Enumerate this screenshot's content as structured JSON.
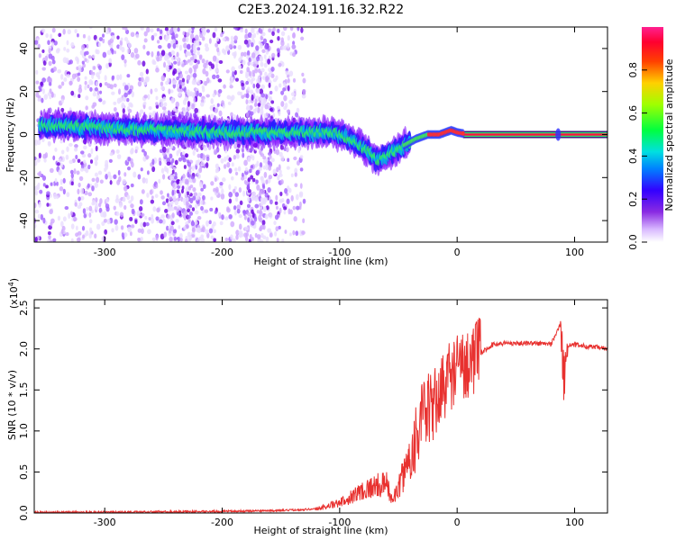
{
  "title": "C2E3.2024.191.16.32.R22",
  "chart_data": [
    {
      "type": "heatmap",
      "xlabel": "Height of straight line (km)",
      "ylabel": "Frequency (Hz)",
      "xlim": [
        -360,
        128
      ],
      "ylim": [
        -50,
        50
      ],
      "xticks": [
        -300,
        -200,
        -100,
        0,
        100
      ],
      "yticks": [
        -40,
        -20,
        0,
        20,
        40
      ],
      "colorbar": {
        "label": "Normalized spectral amplitude",
        "range": [
          0,
          1
        ],
        "ticks": [
          "0.0",
          "0.2",
          "0.4",
          "0.6",
          "0.8"
        ],
        "colormap": "rainbow (white-violet-blue-cyan-green-yellow-red-pink)"
      },
      "ridge": {
        "name": "",
        "points": [
          [
            -355,
            4
          ],
          [
            -330,
            4
          ],
          [
            -300,
            3
          ],
          [
            -270,
            2
          ],
          [
            -240,
            2
          ],
          [
            -210,
            1
          ],
          [
            -180,
            1
          ],
          [
            -150,
            1
          ],
          [
            -120,
            1
          ],
          [
            -105,
            1
          ],
          [
            -95,
            -1
          ],
          [
            -85,
            -4
          ],
          [
            -75,
            -8
          ],
          [
            -68,
            -12
          ],
          [
            -60,
            -10
          ],
          [
            -50,
            -7
          ],
          [
            -45,
            -5
          ],
          [
            -35,
            -2
          ],
          [
            -25,
            0
          ],
          [
            -15,
            0
          ],
          [
            -5,
            2
          ],
          [
            0,
            1
          ],
          [
            10,
            0
          ],
          [
            50,
            0
          ],
          [
            85,
            0
          ],
          [
            128,
            0
          ]
        ]
      }
    },
    {
      "type": "line",
      "xlabel": "Height of straight line (km)",
      "ylabel": "SNR (10 * v/v)",
      "y_multiplier": "(x10⁴)",
      "y_multiplier_base": "(x10",
      "y_multiplier_exp": "4",
      "xlim": [
        -360,
        128
      ],
      "ylim": [
        0,
        2.6
      ],
      "xticks": [
        -300,
        -200,
        -100,
        0,
        100
      ],
      "yticks": [
        "0.0",
        "0.5",
        "1.0",
        "1.5",
        "2.0",
        "2.5"
      ],
      "color": "#e8312f",
      "series": [
        {
          "name": "",
          "x": [
            -360,
            -300,
            -200,
            -150,
            -120,
            -100,
            -90,
            -80,
            -70,
            -60,
            -55,
            -50,
            -45,
            -40,
            -35,
            -30,
            -25,
            -20,
            -15,
            -10,
            -5,
            0,
            10,
            20,
            30,
            40,
            60,
            80,
            88,
            91,
            94,
            100,
            128
          ],
          "y": [
            0.01,
            0.01,
            0.02,
            0.03,
            0.05,
            0.12,
            0.2,
            0.28,
            0.33,
            0.35,
            0.15,
            0.3,
            0.5,
            0.7,
            0.95,
            1.15,
            1.25,
            1.3,
            1.45,
            1.6,
            1.7,
            1.75,
            1.85,
            1.95,
            2.05,
            2.07,
            2.07,
            2.06,
            2.3,
            1.6,
            2.05,
            2.05,
            2.0
          ]
        }
      ]
    }
  ]
}
